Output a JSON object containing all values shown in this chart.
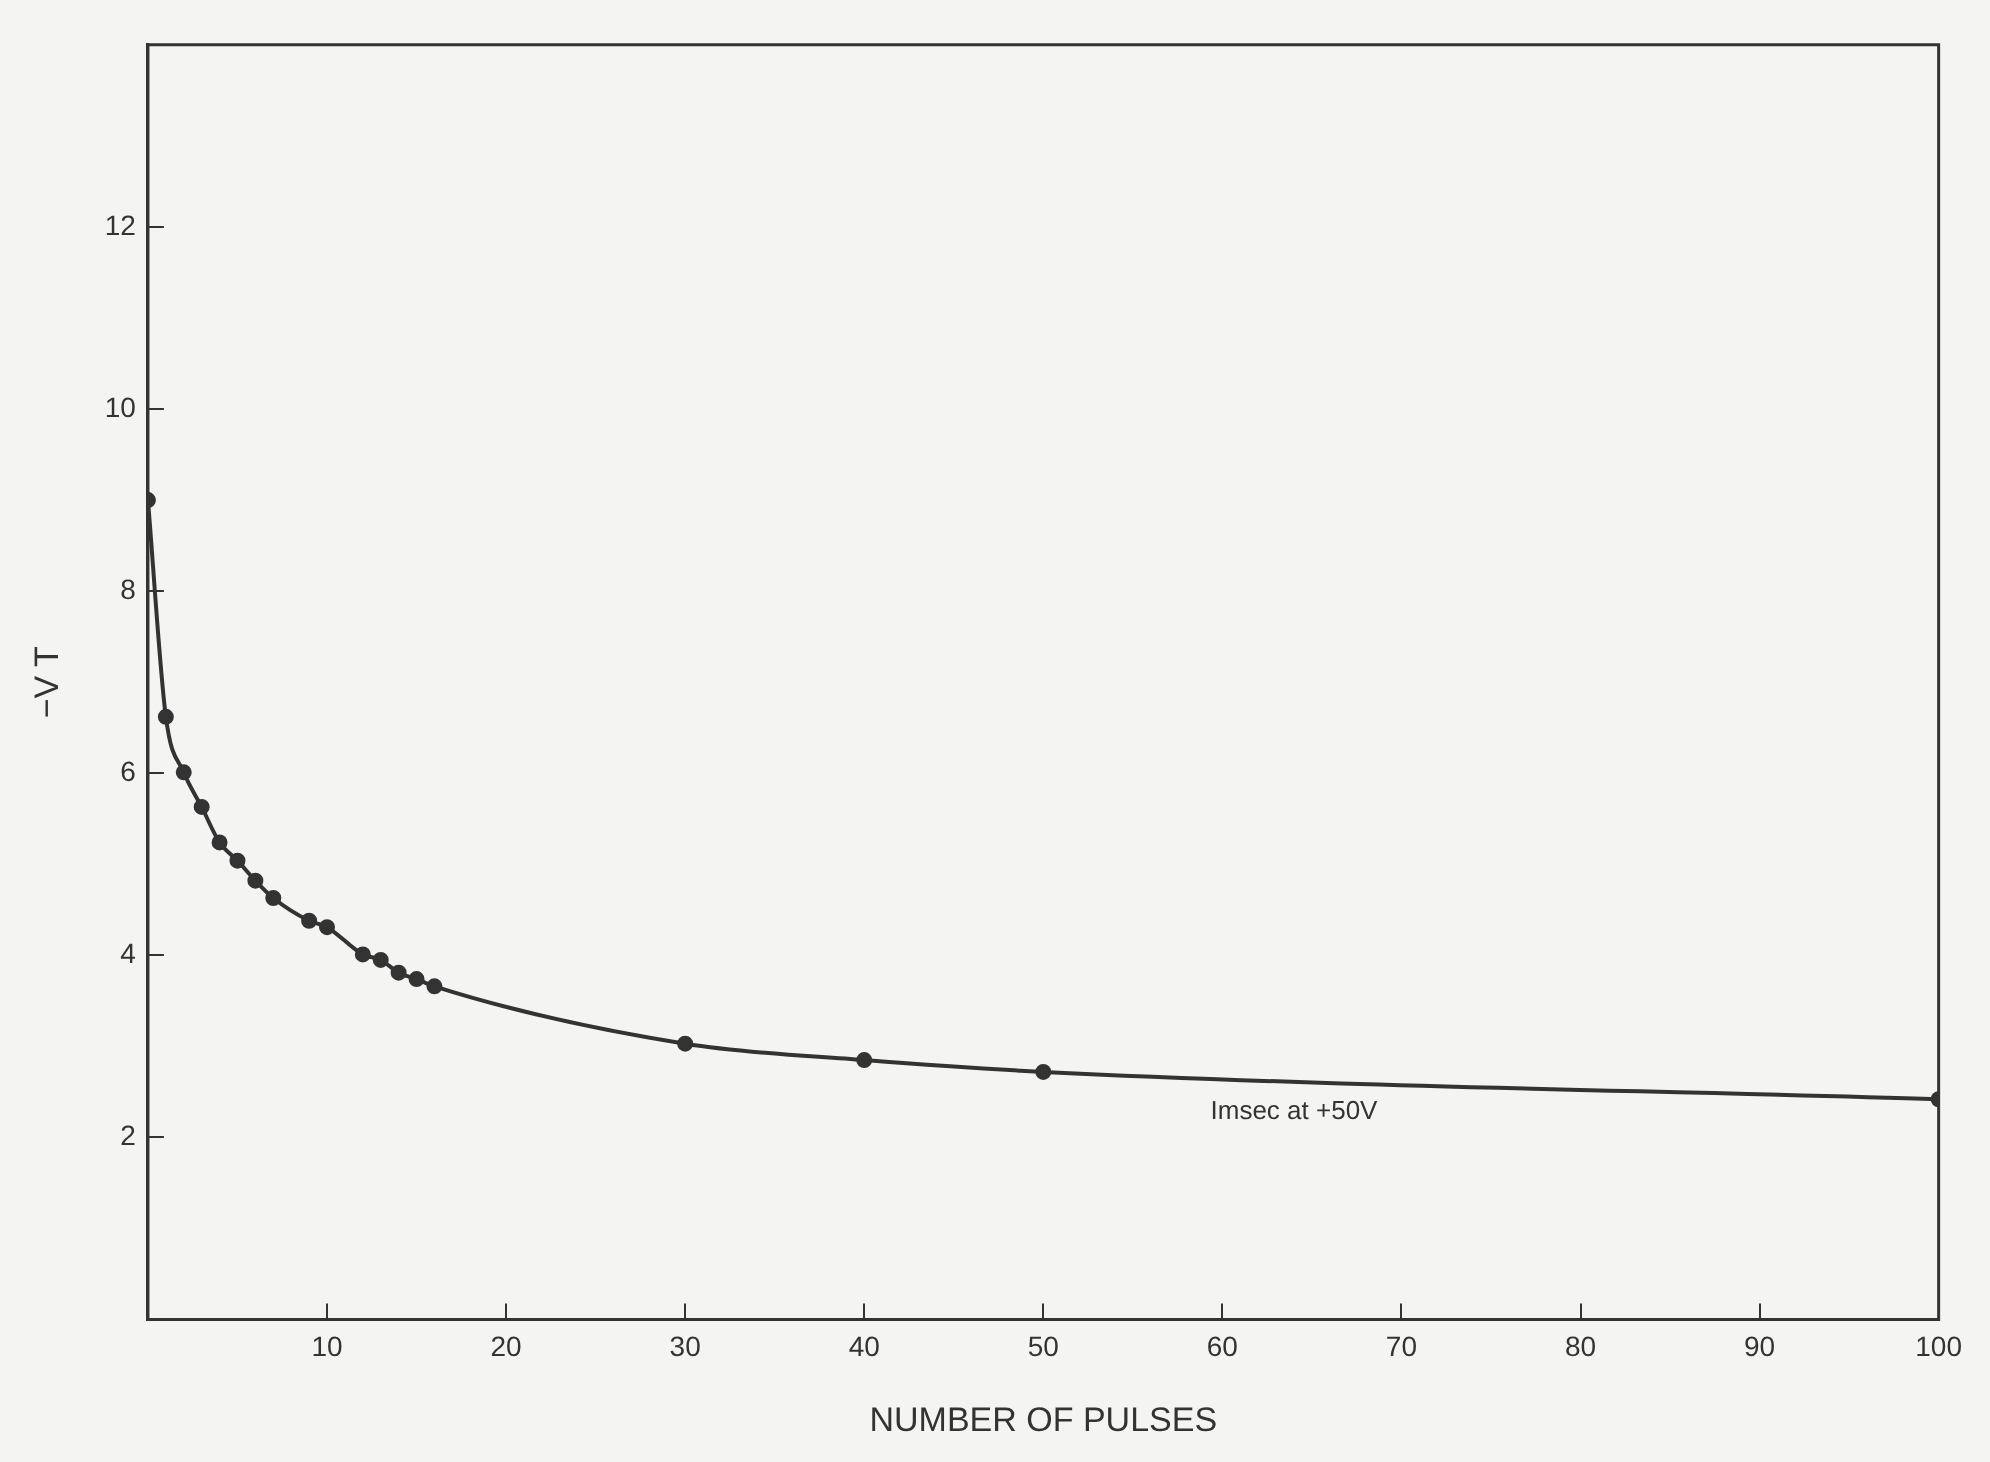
{
  "chart_data": {
    "type": "line",
    "xlabel": "NUMBER OF PULSES",
    "ylabel": "−V T",
    "x": [
      0,
      1,
      2,
      3,
      4,
      5,
      6,
      7,
      9,
      10,
      12,
      13,
      14,
      15,
      16,
      30,
      40,
      50,
      100
    ],
    "values": [
      9.0,
      6.62,
      6.01,
      5.63,
      5.24,
      5.04,
      4.82,
      4.63,
      4.38,
      4.31,
      4.01,
      3.95,
      3.81,
      3.74,
      3.66,
      3.03,
      2.85,
      2.72,
      2.42
    ],
    "color": "#333333",
    "marker": "circle",
    "line_style": "solid",
    "xlim": [
      0,
      100
    ],
    "xticks": [
      10,
      20,
      30,
      40,
      50,
      60,
      70,
      80,
      90,
      100
    ],
    "ylim": [
      0,
      14
    ],
    "yticks": [
      2,
      4,
      6,
      8,
      10,
      12
    ],
    "grid": false,
    "legend": false,
    "annotations": [
      "Imsec at +50V"
    ]
  }
}
